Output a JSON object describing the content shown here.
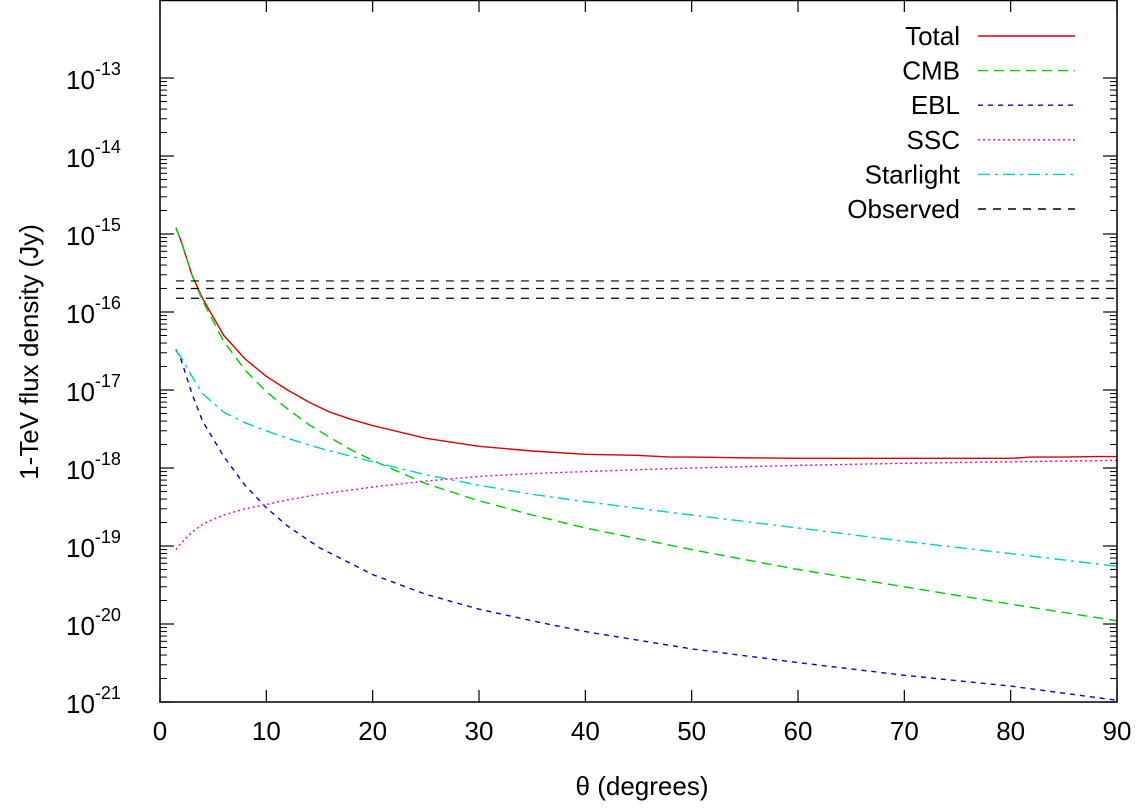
{
  "chart_data": {
    "type": "line",
    "title": "",
    "xlabel": "θ (degrees)",
    "ylabel": "1-TeV flux density (Jy)",
    "xlim": [
      0,
      90
    ],
    "ylim": [
      1e-21,
      1e-12
    ],
    "yscale": "log",
    "grid": false,
    "legend_position": "top-right",
    "x_ticks": [
      {
        "value": 0,
        "label": "0"
      },
      {
        "value": 10,
        "label": "10"
      },
      {
        "value": 20,
        "label": "20"
      },
      {
        "value": 30,
        "label": "30"
      },
      {
        "value": 40,
        "label": "40"
      },
      {
        "value": 50,
        "label": "50"
      },
      {
        "value": 60,
        "label": "60"
      },
      {
        "value": 70,
        "label": "70"
      },
      {
        "value": 80,
        "label": "80"
      },
      {
        "value": 90,
        "label": "90"
      }
    ],
    "y_ticks": [
      {
        "value": 1e-21,
        "base": "10",
        "exp": "-21"
      },
      {
        "value": 1e-20,
        "base": "10",
        "exp": "-20"
      },
      {
        "value": 1e-19,
        "base": "10",
        "exp": "-19"
      },
      {
        "value": 1e-18,
        "base": "10",
        "exp": "-18"
      },
      {
        "value": 1e-17,
        "base": "10",
        "exp": "-17"
      },
      {
        "value": 1e-16,
        "base": "10",
        "exp": "-16"
      },
      {
        "value": 1e-15,
        "base": "10",
        "exp": "-15"
      },
      {
        "value": 1e-14,
        "base": "10",
        "exp": "-14"
      },
      {
        "value": 1e-13,
        "base": "10",
        "exp": "-13"
      }
    ],
    "series": [
      {
        "name": "Total",
        "color": "#dd0000",
        "dash": "solid",
        "x": [
          1.5,
          2,
          3,
          4,
          6,
          8,
          10,
          12,
          14,
          16,
          18,
          20,
          25,
          30,
          35,
          40,
          45,
          48,
          50,
          55,
          60,
          65,
          70,
          75,
          80,
          82,
          85,
          88,
          90
        ],
        "y": [
          1.2e-15,
          8e-16,
          3e-16,
          1.5e-16,
          5e-17,
          2.5e-17,
          1.5e-17,
          1e-17,
          7e-18,
          5.2e-18,
          4.2e-18,
          3.5e-18,
          2.4e-18,
          1.9e-18,
          1.65e-18,
          1.5e-18,
          1.45e-18,
          1.38e-18,
          1.38e-18,
          1.35e-18,
          1.33e-18,
          1.33e-18,
          1.33e-18,
          1.33e-18,
          1.33e-18,
          1.38e-18,
          1.38e-18,
          1.4e-18,
          1.4e-18
        ]
      },
      {
        "name": "CMB",
        "color": "#00cc00",
        "dash": "long",
        "x": [
          1.5,
          2,
          3,
          4,
          6,
          8,
          10,
          12,
          14,
          16,
          18,
          20,
          25,
          30,
          35,
          40,
          50,
          60,
          70,
          80,
          90
        ],
        "y": [
          1.2e-15,
          8e-16,
          3e-16,
          1.4e-16,
          4.2e-17,
          1.8e-17,
          9.5e-18,
          5.7e-18,
          3.6e-18,
          2.45e-18,
          1.7e-18,
          1.25e-18,
          6.3e-19,
          3.8e-19,
          2.5e-19,
          1.7e-19,
          9e-20,
          5e-20,
          3e-20,
          1.8e-20,
          1.1e-20
        ]
      },
      {
        "name": "EBL",
        "color": "#0000cc",
        "dash": "short",
        "x": [
          1.5,
          2,
          3,
          4,
          6,
          8,
          10,
          12,
          15,
          20,
          25,
          30,
          35,
          40,
          50,
          60,
          70,
          80,
          90
        ],
        "y": [
          3.3e-17,
          2.4e-17,
          9e-18,
          4e-18,
          1.4e-18,
          6e-19,
          3.1e-19,
          1.8e-19,
          9.5e-20,
          4.3e-20,
          2.4e-20,
          1.55e-20,
          1.1e-20,
          8e-21,
          4.8e-21,
          3.2e-21,
          2.2e-21,
          1.6e-21,
          1.05e-21
        ]
      },
      {
        "name": "SSC",
        "color": "#dd00dd",
        "dash": "dotted",
        "x": [
          1.5,
          2,
          3,
          4,
          5,
          6,
          8,
          10,
          12,
          15,
          20,
          25,
          30,
          35,
          40,
          45,
          50,
          60,
          70,
          80,
          90
        ],
        "y": [
          9e-20,
          1.1e-19,
          1.5e-19,
          1.9e-19,
          2.2e-19,
          2.5e-19,
          3e-19,
          3.4e-19,
          3.9e-19,
          4.6e-19,
          5.7e-19,
          6.8e-19,
          7.8e-19,
          8.5e-19,
          9e-19,
          9.5e-19,
          1e-18,
          1.08e-18,
          1.15e-18,
          1.2e-18,
          1.25e-18
        ]
      },
      {
        "name": "Starlight",
        "color": "#00cccc",
        "dash": "dashdot",
        "x": [
          1.5,
          2,
          3,
          4,
          6,
          8,
          10,
          12,
          15,
          20,
          25,
          30,
          35,
          40,
          50,
          60,
          70,
          80,
          90
        ],
        "y": [
          3.2e-17,
          2.6e-17,
          1.5e-17,
          9e-18,
          5.2e-18,
          3.8e-18,
          3e-18,
          2.4e-18,
          1.8e-18,
          1.2e-18,
          8.2e-19,
          6e-19,
          4.6e-19,
          3.7e-19,
          2.5e-19,
          1.7e-19,
          1.15e-19,
          8e-20,
          5.5e-20
        ]
      },
      {
        "name": "Observed",
        "color": "#000000",
        "dash": "observed",
        "levels": [
          2.5e-16,
          2e-16,
          1.5e-16
        ],
        "xrange": [
          1.5,
          90
        ]
      }
    ]
  }
}
